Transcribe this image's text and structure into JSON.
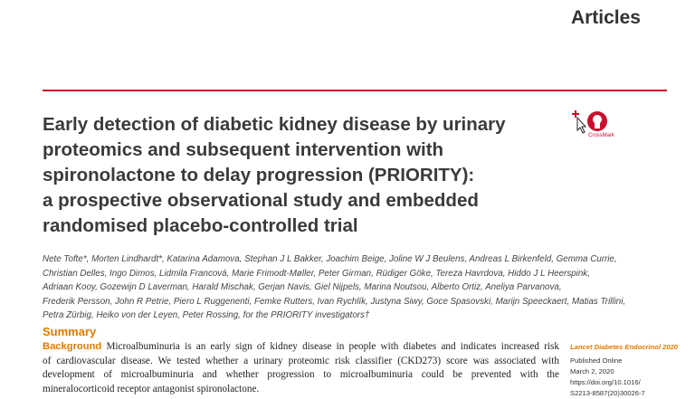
{
  "header": {
    "section": "Articles"
  },
  "title": {
    "lines": [
      "Early detection of diabetic kidney disease by urinary",
      "proteomics and subsequent intervention with",
      "spironolactone to delay progression (PRIORITY):",
      "a prospective observational study and embedded",
      "randomised placebo-controlled trial"
    ]
  },
  "crossmark": {
    "label": "CrossMark"
  },
  "authors": {
    "lines": [
      "Nete Tofte*, Morten Lindhardt*, Katarina Adamova, Stephan J L Bakker, Joachim Beige, Joline W J Beulens, Andreas L Birkenfeld, Gemma Currie,",
      "Christian Delles, Ingo Dimos, Lidmila Francová, Marie Frimodt-Møller, Peter Girman, Rüdiger Göke, Tereza Havrdova, Hiddo J L Heerspink,",
      "Adriaan Kooy, Gozewijn D Laverman, Harald Mischak, Gerjan Navis, Giel Nijpels, Marina Noutsou, Alberto Ortiz, Aneliya Parvanova,",
      "Frederik Persson, John R Petrie, Piero L Ruggenenti, Femke Rutters, Ivan Rychlík, Justyna Siwy, Goce Spasovski, Marijn Speeckaert, Matias Trillini,",
      "Petra Zürbig, Heiko von der Leyen, Peter Rossing, for the PRIORITY investigators†"
    ]
  },
  "summary": {
    "heading": "Summary",
    "label": "Background",
    "lines": [
      "Microalbuminuria is an early sign of kidney disease in people with diabetes and indicates increased risk",
      "of cardiovascular disease. We tested whether a urinary proteomic risk classifier (CKD273) score was associated with",
      "development of microalbuminuria and whether progression to microalbuminuria could be prevented with the",
      "mineralocorticoid receptor antagonist spironolactone."
    ]
  },
  "side": {
    "journal": "Lancet Diabetes Endocrinol 2020",
    "lines": [
      "Published Online",
      "March 2, 2020",
      "https://doi.org/10.1016/",
      "S2213-8587(20)30026-7"
    ]
  }
}
